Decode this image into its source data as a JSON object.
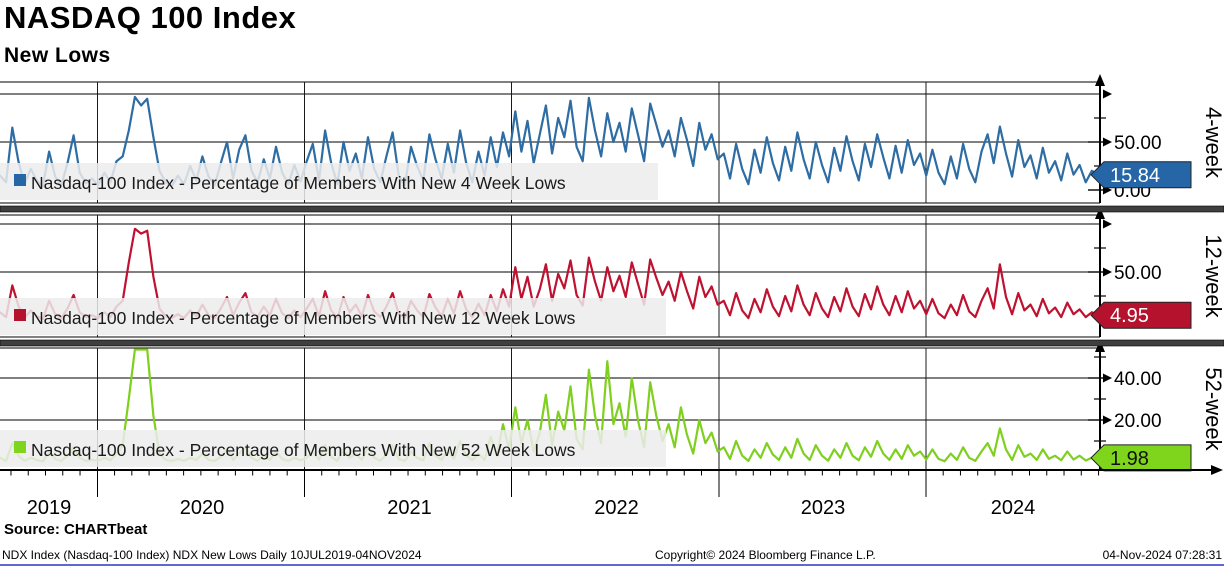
{
  "source": "Source: CHARTbeat",
  "footer": {
    "left": "NDX Index (Nasdaq-100 Index) NDX New Lows  Daily 10JUL2019-04NOV2024",
    "center": "Copyright© 2024 Bloomberg Finance L.P.",
    "right": "04-Nov-2024 07:28:31"
  },
  "chart_data": {
    "type": "line",
    "title": "NASDAQ 100 Index",
    "subtitle": "New Lows",
    "x_range": {
      "start": "10JUL2019",
      "end": "04NOV2024",
      "start_decimal": 2019.53,
      "end_decimal": 2024.84
    },
    "x_tick_years": [
      "2019",
      "2020",
      "2021",
      "2022",
      "2023",
      "2024"
    ],
    "grid": true,
    "legend_position": "bottom-left-inside",
    "panels": [
      {
        "name": "4-week",
        "legend": "Nasdaq-100 Index - Percentage of Members With New 4 Week Lows",
        "color": "#2e6da4",
        "tag_color": "#2766a6",
        "tag_text_color": "#ffffff",
        "last_value": "15.84",
        "ylim": [
          0,
          100
        ],
        "yticks": [
          {
            "v": 50,
            "label": "50.00"
          },
          {
            "v": 0,
            "label": "0.00"
          }
        ],
        "values": [
          15,
          8,
          65,
          30,
          6,
          22,
          10,
          4,
          40,
          14,
          5,
          28,
          57,
          18,
          7,
          12,
          5,
          18,
          8,
          30,
          35,
          62,
          97,
          88,
          95,
          55,
          20,
          8,
          4,
          15,
          6,
          25,
          10,
          35,
          14,
          5,
          28,
          50,
          12,
          42,
          57,
          20,
          8,
          32,
          12,
          45,
          18,
          6,
          26,
          9,
          30,
          48,
          10,
          62,
          28,
          6,
          50,
          20,
          38,
          12,
          55,
          22,
          8,
          35,
          60,
          15,
          5,
          45,
          25,
          10,
          58,
          32,
          12,
          48,
          18,
          62,
          28,
          8,
          40,
          15,
          55,
          24,
          60,
          35,
          82,
          40,
          72,
          28,
          58,
          88,
          38,
          75,
          55,
          93,
          45,
          30,
          96,
          62,
          35,
          80,
          50,
          70,
          40,
          85,
          58,
          30,
          90,
          68,
          45,
          62,
          35,
          75,
          52,
          25,
          70,
          42,
          58,
          32,
          38,
          12,
          48,
          22,
          6,
          42,
          18,
          55,
          28,
          10,
          45,
          20,
          60,
          32,
          12,
          50,
          26,
          8,
          44,
          20,
          56,
          30,
          10,
          48,
          24,
          58,
          34,
          12,
          46,
          18,
          52,
          26,
          38,
          15,
          42,
          18,
          6,
          35,
          12,
          48,
          22,
          8,
          40,
          58,
          28,
          66,
          38,
          14,
          52,
          24,
          36,
          12,
          44,
          18,
          30,
          10,
          38,
          16,
          26,
          8,
          20,
          15.84
        ]
      },
      {
        "name": "12-week",
        "legend": "Nasdaq-100 Index - Percentage of Members With New 12 Week Lows",
        "color": "#be1230",
        "tag_color": "#b5122e",
        "tag_text_color": "#ffffff",
        "last_value": "4.95",
        "ylim": [
          0,
          100
        ],
        "yticks": [
          {
            "v": 50,
            "label": "50.00"
          }
        ],
        "values": [
          8,
          3,
          36,
          15,
          2,
          10,
          4,
          1,
          20,
          6,
          2,
          12,
          26,
          8,
          3,
          5,
          2,
          8,
          3,
          14,
          20,
          60,
          95,
          90,
          93,
          45,
          12,
          4,
          2,
          6,
          2,
          10,
          4,
          16,
          5,
          2,
          12,
          24,
          5,
          18,
          28,
          8,
          3,
          14,
          5,
          22,
          7,
          2,
          10,
          3,
          12,
          22,
          4,
          30,
          10,
          2,
          24,
          8,
          16,
          4,
          26,
          9,
          3,
          14,
          28,
          6,
          2,
          20,
          10,
          3,
          27,
          13,
          4,
          22,
          7,
          30,
          11,
          3,
          17,
          5,
          26,
          9,
          32,
          14,
          55,
          22,
          45,
          14,
          32,
          58,
          20,
          48,
          33,
          62,
          26,
          15,
          65,
          40,
          20,
          55,
          30,
          46,
          24,
          60,
          38,
          16,
          63,
          44,
          26,
          40,
          20,
          50,
          30,
          12,
          45,
          24,
          35,
          16,
          20,
          5,
          28,
          10,
          2,
          22,
          8,
          32,
          14,
          4,
          25,
          9,
          36,
          16,
          5,
          28,
          12,
          3,
          24,
          9,
          33,
          14,
          4,
          27,
          11,
          35,
          16,
          5,
          25,
          8,
          30,
          12,
          20,
          6,
          22,
          7,
          2,
          16,
          5,
          26,
          9,
          3,
          20,
          33,
          12,
          58,
          24,
          6,
          28,
          10,
          16,
          4,
          22,
          7,
          13,
          3,
          18,
          6,
          11,
          3,
          8,
          4.95
        ]
      },
      {
        "name": "52-week",
        "legend": "Nasdaq-100 Index - Percentage of Members With New 52 Week Lows",
        "color": "#7fd01e",
        "tag_color": "#7fd51c",
        "tag_text_color": "#111111",
        "last_value": "1.98",
        "ylim": [
          0,
          55
        ],
        "yticks": [
          {
            "v": 40,
            "label": "40.00"
          },
          {
            "v": 20,
            "label": "20.00"
          }
        ],
        "values": [
          2,
          0.5,
          9,
          3,
          0.5,
          2,
          1,
          0.3,
          5,
          1.5,
          0.5,
          3,
          7,
          2,
          0.5,
          1,
          0.5,
          2,
          0.8,
          4,
          8,
          30,
          62,
          55,
          58,
          22,
          4,
          1,
          0.5,
          1.5,
          0.5,
          2,
          1,
          4,
          1,
          0.5,
          2.5,
          6,
          1,
          4,
          7,
          2,
          0.6,
          3,
          1,
          5,
          1.5,
          0.5,
          2,
          0.8,
          2,
          5,
          1,
          8,
          2.5,
          0.5,
          6,
          2,
          4,
          1,
          7,
          2,
          0.6,
          3.5,
          8,
          1.5,
          0.5,
          5,
          2,
          0.8,
          9,
          3,
          1,
          6,
          1.5,
          10,
          3,
          0.8,
          4,
          1,
          12,
          3,
          18,
          6,
          26,
          9,
          20,
          5,
          14,
          32,
          8,
          24,
          15,
          36,
          11,
          6,
          44,
          22,
          9,
          48,
          18,
          28,
          12,
          40,
          20,
          7,
          38,
          22,
          10,
          18,
          7,
          26,
          13,
          4,
          20,
          9,
          14,
          5,
          7,
          1.5,
          10,
          3,
          0.5,
          6,
          2,
          9,
          3.5,
          1,
          7,
          2,
          11,
          4,
          1,
          8,
          3,
          0.6,
          6,
          2,
          9,
          3,
          0.8,
          7,
          2.5,
          10,
          4,
          1,
          6,
          1.5,
          8,
          3,
          5,
          1.2,
          6,
          1.5,
          0.4,
          4,
          1,
          7,
          2,
          0.5,
          5,
          9,
          3,
          16,
          6,
          1,
          8,
          2.5,
          4,
          1,
          6,
          1.5,
          3,
          0.8,
          5,
          1.2,
          3,
          0.7,
          2,
          1.98
        ]
      }
    ]
  }
}
